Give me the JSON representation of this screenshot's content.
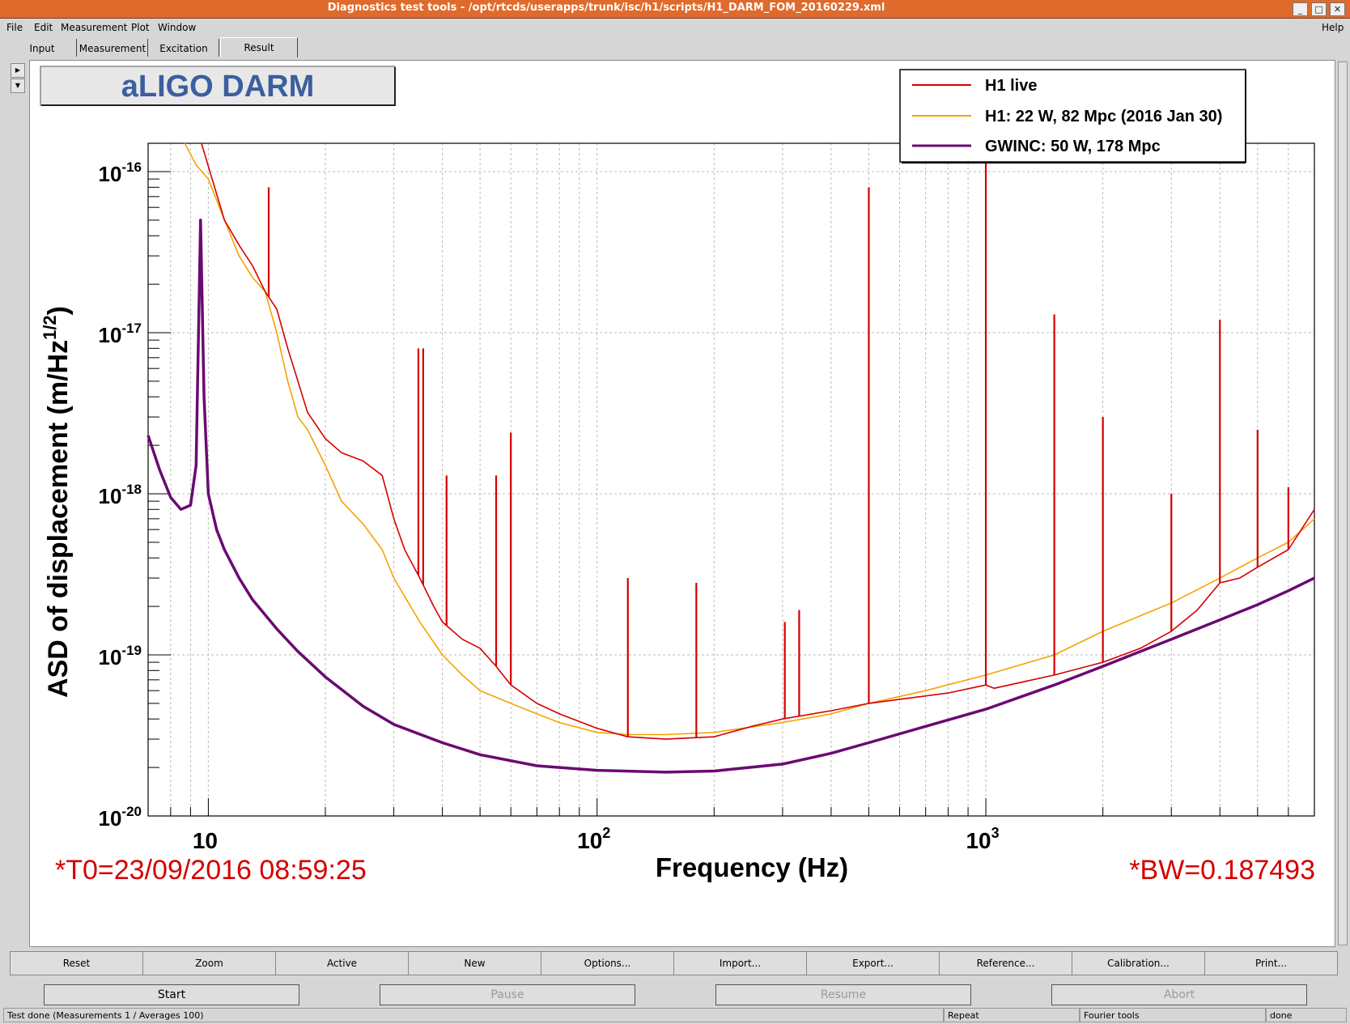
{
  "window": {
    "title": "Diagnostics test tools - /opt/rtcds/userapps/trunk/isc/h1/scripts/H1_DARM_FOM_20160229.xml"
  },
  "menu": {
    "file": "File",
    "edit": "Edit",
    "measurement": "Measurement",
    "plot": "Plot",
    "window": "Window",
    "help": "Help"
  },
  "tabs": [
    "Input",
    "Measurement",
    "Excitation",
    "Result"
  ],
  "active_tab": "Result",
  "plot": {
    "title_box": "aLIGO DARM",
    "t0": "*T0=23/09/2016 08:59:25",
    "bw": "*BW=0.187493",
    "legend": [
      "H1 live",
      "H1: 22 W, 82 Mpc (2016 Jan 30)",
      "GWINC: 50 W, 178 Mpc"
    ],
    "xlabel": "Frequency (Hz)",
    "ylabel_main": "ASD of displacement (m/Hz",
    "ylabel_sup": "1/2",
    "ylabel_end": ")",
    "xticks": [
      {
        "base": "10",
        "exp": ""
      },
      {
        "base": "10",
        "exp": "2"
      },
      {
        "base": "10",
        "exp": "3"
      }
    ],
    "yticks": [
      {
        "base": "10",
        "exp": "-16"
      },
      {
        "base": "10",
        "exp": "-17"
      },
      {
        "base": "10",
        "exp": "-18"
      },
      {
        "base": "10",
        "exp": "-19"
      },
      {
        "base": "10",
        "exp": "-20"
      }
    ]
  },
  "chart_data": {
    "type": "line",
    "title": "aLIGO DARM",
    "xlabel": "Frequency (Hz)",
    "ylabel": "ASD of displacement (m/Hz^1/2)",
    "xscale": "log",
    "yscale": "log",
    "xlim": [
      7,
      7000
    ],
    "ylim": [
      1e-20,
      1.5e-16
    ],
    "grid": true,
    "legend_position": "top-right",
    "series": [
      {
        "name": "H1 live",
        "color": "#d40000",
        "x": [
          9.6,
          11,
          12,
          13,
          14,
          15,
          16,
          17,
          18,
          20,
          22,
          25,
          28,
          30,
          32,
          35,
          38,
          40,
          45,
          50,
          55,
          60,
          70,
          80,
          100,
          120,
          150,
          200,
          250,
          300,
          400,
          500,
          600,
          800,
          1000,
          1050,
          1500,
          2000,
          2500,
          3000,
          3500,
          4000,
          4500,
          5000,
          6000,
          7000
        ],
        "y": [
          1.5e-16,
          5e-17,
          3.5e-17,
          2.6e-17,
          1.8e-17,
          1.4e-17,
          8e-18,
          5e-18,
          3.2e-18,
          2.2e-18,
          1.8e-18,
          1.6e-18,
          1.3e-18,
          7e-19,
          4.5e-19,
          3e-19,
          2e-19,
          1.6e-19,
          1.25e-19,
          1.1e-19,
          8.5e-20,
          6.5e-20,
          5e-20,
          4.3e-20,
          3.5e-20,
          3.1e-20,
          3e-20,
          3.1e-20,
          3.6e-20,
          4e-20,
          4.5e-20,
          5e-20,
          5.3e-20,
          5.8e-20,
          6.5e-20,
          6.2e-20,
          7.5e-20,
          9e-20,
          1.1e-19,
          1.4e-19,
          1.9e-19,
          2.8e-19,
          3e-19,
          3.5e-19,
          4.5e-19,
          8e-19
        ]
      },
      {
        "name": "H1: 22 W, 82 Mpc (2016 Jan 30)",
        "color": "#f5a300",
        "x": [
          8.7,
          9.3,
          10,
          11,
          12,
          13,
          14,
          15,
          16,
          17,
          18,
          20,
          22,
          25,
          28,
          30,
          35,
          40,
          45,
          50,
          60,
          70,
          80,
          100,
          120,
          150,
          200,
          300,
          400,
          500,
          700,
          1000,
          1500,
          2000,
          3000,
          4000,
          5000,
          6000,
          7000
        ],
        "y": [
          1.5e-16,
          1.1e-16,
          9e-17,
          5e-17,
          3e-17,
          2.2e-17,
          1.8e-17,
          1e-17,
          5e-18,
          3e-18,
          2.5e-18,
          1.5e-18,
          9e-19,
          6.5e-19,
          4.5e-19,
          3e-19,
          1.6e-19,
          1e-19,
          7.5e-20,
          6e-20,
          5e-20,
          4.3e-20,
          3.8e-20,
          3.3e-20,
          3.2e-20,
          3.2e-20,
          3.3e-20,
          3.8e-20,
          4.3e-20,
          5e-20,
          6e-20,
          7.5e-20,
          1e-19,
          1.4e-19,
          2.1e-19,
          3e-19,
          4e-19,
          5e-19,
          7e-19
        ]
      },
      {
        "name": "GWINC: 50 W, 178 Mpc",
        "color": "#6a0a72",
        "x": [
          7,
          7.5,
          8,
          8.5,
          9,
          9.3,
          9.55,
          9.75,
          10,
          10.5,
          11,
          12,
          13,
          15,
          17,
          20,
          25,
          30,
          40,
          50,
          70,
          100,
          150,
          200,
          300,
          400,
          500,
          700,
          1000,
          1500,
          2000,
          3000,
          4000,
          5000,
          6000,
          7000
        ],
        "y": [
          2.3e-18,
          1.4e-18,
          9.5e-19,
          8e-19,
          8.5e-19,
          1.5e-18,
          5e-17,
          4e-18,
          1e-18,
          6e-19,
          4.5e-19,
          3e-19,
          2.2e-19,
          1.45e-19,
          1.05e-19,
          7.3e-20,
          4.8e-20,
          3.7e-20,
          2.85e-20,
          2.4e-20,
          2.05e-20,
          1.92e-20,
          1.87e-20,
          1.9e-20,
          2.1e-20,
          2.45e-20,
          2.85e-20,
          3.6e-20,
          4.6e-20,
          6.5e-20,
          8.5e-20,
          1.25e-19,
          1.65e-19,
          2.05e-19,
          2.5e-19,
          3e-19
        ]
      }
    ],
    "peaks": [
      {
        "series": "H1 live",
        "x": [
          14.3,
          34.7,
          35.7,
          41,
          55,
          60,
          120,
          180,
          304,
          331,
          500,
          1000,
          1500,
          2000,
          3000,
          4000,
          5000,
          6000
        ],
        "y": [
          8e-17,
          8e-18,
          8e-18,
          1.3e-18,
          1.3e-18,
          2.4e-18,
          3e-19,
          2.8e-19,
          1.6e-19,
          1.9e-19,
          8e-17,
          1.5e-16,
          1.3e-17,
          3e-18,
          1e-18,
          1.2e-17,
          2.5e-18,
          1.1e-18
        ]
      }
    ]
  },
  "buttons": [
    "Reset",
    "Zoom",
    "Active",
    "New",
    "Options...",
    "Import...",
    "Export...",
    "Reference...",
    "Calibration...",
    "Print..."
  ],
  "controls": {
    "start": "Start",
    "pause": "Pause",
    "resume": "Resume",
    "abort": "Abort"
  },
  "status": {
    "main": "Test done (Measurements 1 / Averages 100)",
    "repeat": "Repeat",
    "fourier": "Fourier tools",
    "done": "done"
  }
}
